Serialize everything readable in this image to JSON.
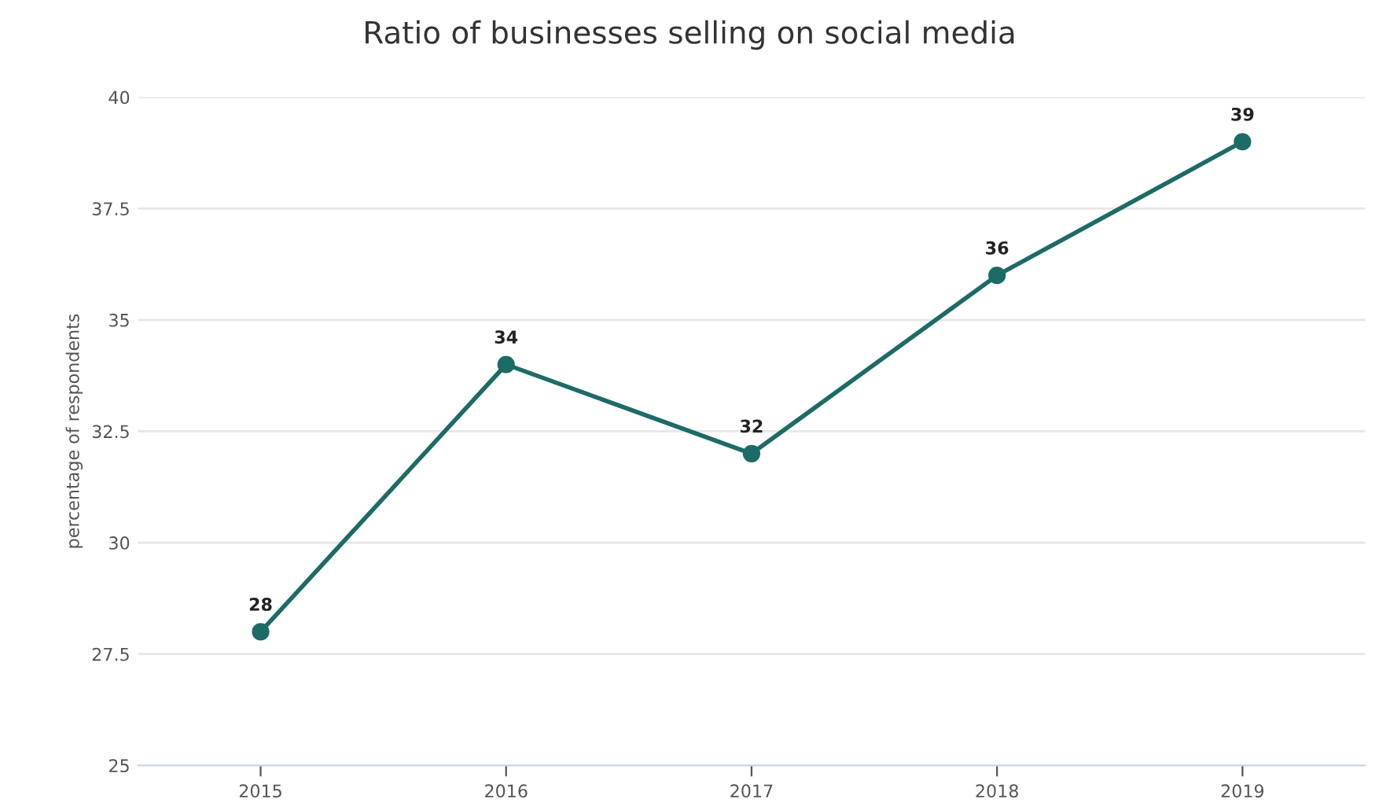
{
  "chart_data": {
    "type": "line",
    "title": "Ratio of businesses selling on social media",
    "ylabel": "percentage of respondents",
    "categories": [
      "2015",
      "2016",
      "2017",
      "2018",
      "2019"
    ],
    "series": [
      {
        "color": "#1d6b66",
        "values": [
          28,
          34,
          32,
          36,
          39
        ]
      }
    ],
    "ylim": [
      25,
      40
    ],
    "yticks": [
      25,
      27.5,
      30,
      32.5,
      35,
      37.5,
      40
    ],
    "grid": "y",
    "marker": "circle",
    "line_style": "solid",
    "data_labels": true
  }
}
